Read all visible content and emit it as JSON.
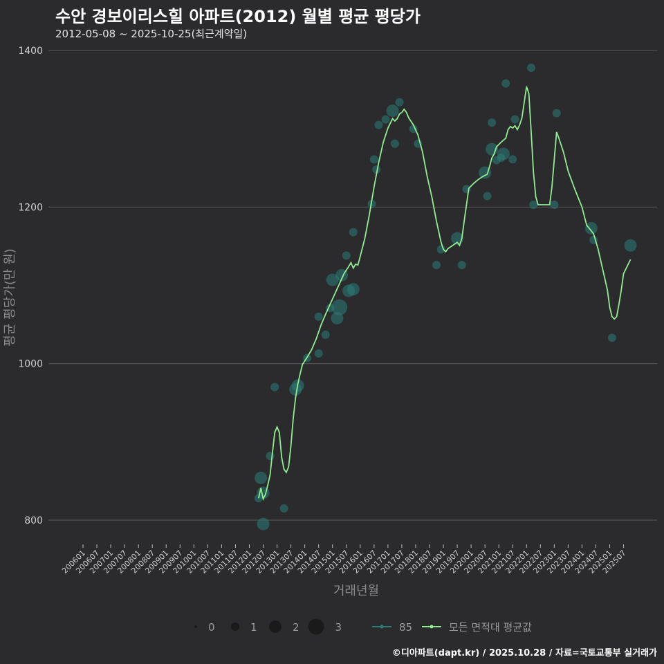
{
  "title": "수안 경보이리스힐 아파트(2012) 월별 평균 평당가",
  "subtitle": "2012-05-08 ~ 2025-10-25(최근계약일)",
  "footer": "©디아파트(dapt.kr) / 2025.10.28 / 자료=국토교통부 실거래가",
  "colors": {
    "background": "#2b2b2d",
    "grid": "#5a5a5a",
    "line": "#90ee90",
    "bubble": "#2a7d78"
  },
  "chart_data": {
    "type": "scatter",
    "title": "수안 경보이리스힐 아파트(2012) 월별 평균 평당가",
    "xlabel": "거래년월",
    "ylabel": "평균 평당가(만 원)",
    "ylim": [
      760,
      1410
    ],
    "yticks": [
      800,
      1000,
      1200,
      1400
    ],
    "ytick_labels": [
      "800",
      "1000",
      "1200",
      "1400"
    ],
    "xlim": [
      "2006-01",
      "2025-10"
    ],
    "xtick_labels": [
      "200601",
      "200607",
      "200701",
      "200707",
      "200801",
      "200807",
      "200901",
      "200907",
      "201001",
      "201007",
      "201101",
      "201107",
      "201201",
      "201207",
      "201301",
      "201307",
      "201401",
      "201407",
      "201501",
      "201507",
      "201601",
      "201607",
      "201701",
      "201707",
      "201801",
      "201807",
      "201901",
      "201907",
      "202001",
      "202007",
      "202101",
      "202107",
      "202201",
      "202207",
      "202301",
      "202307",
      "202401",
      "202407",
      "202501",
      "202507"
    ],
    "grid": true,
    "legend": {
      "placement": "bottom",
      "size_entries": [
        {
          "label": "0",
          "count": 0
        },
        {
          "label": "1",
          "count": 1
        },
        {
          "label": "2",
          "count": 2
        },
        {
          "label": "3",
          "count": 3
        }
      ],
      "series_entries": [
        {
          "label": "85"
        },
        {
          "label": "모든 면적대 평균값"
        }
      ]
    },
    "series": [
      {
        "name": "85",
        "type": "bubble",
        "points": [
          [
            "2012-05",
            828,
            1
          ],
          [
            "2012-06",
            854,
            2
          ],
          [
            "2012-07",
            795,
            2
          ],
          [
            "2012-07",
            835,
            2
          ],
          [
            "2012-10",
            882,
            1
          ],
          [
            "2012-12",
            970,
            1
          ],
          [
            "2013-04",
            815,
            1
          ],
          [
            "2013-09",
            967,
            2
          ],
          [
            "2013-10",
            972,
            2
          ],
          [
            "2014-02",
            1007,
            1
          ],
          [
            "2014-07",
            1013,
            1
          ],
          [
            "2014-07",
            1060,
            1
          ],
          [
            "2014-10",
            1037,
            1
          ],
          [
            "2014-12",
            1071,
            1
          ],
          [
            "2015-01",
            1107,
            2
          ],
          [
            "2015-03",
            1058,
            2
          ],
          [
            "2015-04",
            1072,
            3
          ],
          [
            "2015-05",
            1113,
            2
          ],
          [
            "2015-07",
            1138,
            1
          ],
          [
            "2015-08",
            1093,
            2
          ],
          [
            "2015-10",
            1168,
            1
          ],
          [
            "2015-10",
            1095,
            2
          ],
          [
            "2016-06",
            1204,
            1
          ],
          [
            "2016-07",
            1261,
            1
          ],
          [
            "2016-08",
            1248,
            1
          ],
          [
            "2016-09",
            1305,
            1
          ],
          [
            "2016-12",
            1312,
            1
          ],
          [
            "2017-03",
            1323,
            2
          ],
          [
            "2017-04",
            1281,
            1
          ],
          [
            "2017-06",
            1334,
            1
          ],
          [
            "2017-12",
            1300,
            1
          ],
          [
            "2018-02",
            1281,
            1
          ],
          [
            "2018-10",
            1126,
            1
          ],
          [
            "2018-12",
            1146,
            1
          ],
          [
            "2019-07",
            1160,
            2
          ],
          [
            "2019-09",
            1126,
            1
          ],
          [
            "2019-11",
            1223,
            1
          ],
          [
            "2020-07",
            1244,
            2
          ],
          [
            "2020-08",
            1214,
            1
          ],
          [
            "2020-10",
            1308,
            1
          ],
          [
            "2020-10",
            1274,
            2
          ],
          [
            "2020-12",
            1260,
            1
          ],
          [
            "2021-02",
            1263,
            1
          ],
          [
            "2021-03",
            1268,
            2
          ],
          [
            "2021-04",
            1358,
            1
          ],
          [
            "2021-07",
            1261,
            1
          ],
          [
            "2021-08",
            1312,
            1
          ],
          [
            "2022-03",
            1378,
            1
          ],
          [
            "2022-04",
            1203,
            1
          ],
          [
            "2023-01",
            1203,
            1
          ],
          [
            "2023-02",
            1320,
            1
          ],
          [
            "2024-05",
            1173,
            2
          ],
          [
            "2024-06",
            1158,
            1
          ],
          [
            "2025-02",
            1033,
            1
          ],
          [
            "2025-10",
            1151,
            2
          ]
        ]
      },
      {
        "name": "모든 면적대 평균값",
        "type": "line",
        "points": [
          [
            "2012-05",
            828
          ],
          [
            "2012-06",
            841
          ],
          [
            "2012-07",
            827
          ],
          [
            "2012-08",
            833
          ],
          [
            "2012-09",
            845
          ],
          [
            "2012-10",
            858
          ],
          [
            "2012-11",
            886
          ],
          [
            "2012-12",
            912
          ],
          [
            "2013-01",
            919
          ],
          [
            "2013-02",
            912
          ],
          [
            "2013-03",
            880
          ],
          [
            "2013-04",
            865
          ],
          [
            "2013-05",
            861
          ],
          [
            "2013-06",
            868
          ],
          [
            "2013-07",
            895
          ],
          [
            "2013-08",
            930
          ],
          [
            "2013-09",
            956
          ],
          [
            "2013-10",
            974
          ],
          [
            "2013-11",
            987
          ],
          [
            "2013-12",
            999
          ],
          [
            "2014-02",
            1008
          ],
          [
            "2014-04",
            1018
          ],
          [
            "2014-06",
            1032
          ],
          [
            "2014-08",
            1049
          ],
          [
            "2014-10",
            1063
          ],
          [
            "2014-12",
            1076
          ],
          [
            "2015-02",
            1089
          ],
          [
            "2015-04",
            1102
          ],
          [
            "2015-06",
            1115
          ],
          [
            "2015-08",
            1124
          ],
          [
            "2015-09",
            1129
          ],
          [
            "2015-10",
            1122
          ],
          [
            "2015-11",
            1127
          ],
          [
            "2015-12",
            1126
          ],
          [
            "2016-01",
            1137
          ],
          [
            "2016-03",
            1160
          ],
          [
            "2016-05",
            1191
          ],
          [
            "2016-07",
            1226
          ],
          [
            "2016-09",
            1257
          ],
          [
            "2016-11",
            1283
          ],
          [
            "2017-01",
            1301
          ],
          [
            "2017-03",
            1313
          ],
          [
            "2017-04",
            1310
          ],
          [
            "2017-05",
            1313
          ],
          [
            "2017-06",
            1319
          ],
          [
            "2017-07",
            1321
          ],
          [
            "2017-08",
            1325
          ],
          [
            "2017-09",
            1321
          ],
          [
            "2017-10",
            1314
          ],
          [
            "2017-12",
            1305
          ],
          [
            "2018-02",
            1292
          ],
          [
            "2018-04",
            1270
          ],
          [
            "2018-06",
            1239
          ],
          [
            "2018-08",
            1213
          ],
          [
            "2018-10",
            1182
          ],
          [
            "2018-12",
            1155
          ],
          [
            "2019-01",
            1146
          ],
          [
            "2019-02",
            1143
          ],
          [
            "2019-03",
            1147
          ],
          [
            "2019-05",
            1151
          ],
          [
            "2019-07",
            1155
          ],
          [
            "2019-08",
            1151
          ],
          [
            "2019-09",
            1160
          ],
          [
            "2019-10",
            1182
          ],
          [
            "2019-12",
            1224
          ],
          [
            "2020-02",
            1230
          ],
          [
            "2020-04",
            1235
          ],
          [
            "2020-06",
            1239
          ],
          [
            "2020-08",
            1242
          ],
          [
            "2020-09",
            1252
          ],
          [
            "2020-10",
            1263
          ],
          [
            "2020-11",
            1268
          ],
          [
            "2020-12",
            1277
          ],
          [
            "2021-02",
            1283
          ],
          [
            "2021-04",
            1288
          ],
          [
            "2021-05",
            1299
          ],
          [
            "2021-06",
            1303
          ],
          [
            "2021-07",
            1301
          ],
          [
            "2021-08",
            1304
          ],
          [
            "2021-09",
            1299
          ],
          [
            "2021-10",
            1305
          ],
          [
            "2021-11",
            1314
          ],
          [
            "2021-12",
            1334
          ],
          [
            "2022-01",
            1354
          ],
          [
            "2022-02",
            1345
          ],
          [
            "2022-03",
            1296
          ],
          [
            "2022-04",
            1244
          ],
          [
            "2022-05",
            1213
          ],
          [
            "2022-06",
            1203
          ],
          [
            "2022-08",
            1203
          ],
          [
            "2022-11",
            1203
          ],
          [
            "2022-12",
            1226
          ],
          [
            "2023-01",
            1261
          ],
          [
            "2023-02",
            1296
          ],
          [
            "2023-03",
            1288
          ],
          [
            "2023-05",
            1270
          ],
          [
            "2023-07",
            1246
          ],
          [
            "2023-10",
            1222
          ],
          [
            "2024-01",
            1200
          ],
          [
            "2024-03",
            1177
          ],
          [
            "2024-06",
            1166
          ],
          [
            "2024-08",
            1146
          ],
          [
            "2024-10",
            1120
          ],
          [
            "2024-12",
            1094
          ],
          [
            "2025-01",
            1072
          ],
          [
            "2025-02",
            1060
          ],
          [
            "2025-03",
            1057
          ],
          [
            "2025-04",
            1060
          ],
          [
            "2025-05",
            1076
          ],
          [
            "2025-06",
            1094
          ],
          [
            "2025-07",
            1115
          ],
          [
            "2025-10",
            1133
          ]
        ]
      }
    ]
  }
}
